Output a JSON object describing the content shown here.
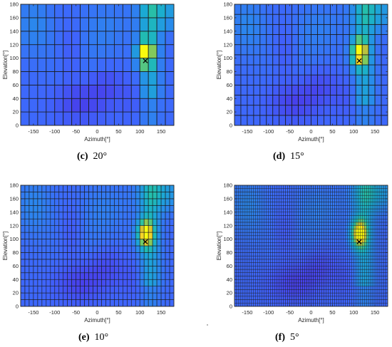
{
  "figure": {
    "panels": [
      {
        "id": "c",
        "label": "(c)",
        "resolution": "20°"
      },
      {
        "id": "d",
        "label": "(d)",
        "resolution": "15°"
      },
      {
        "id": "e",
        "label": "(e)",
        "resolution": "10°"
      },
      {
        "id": "f",
        "label": "(f)",
        "resolution": "5°"
      }
    ]
  },
  "chart_data": [
    {
      "type": "heatmap",
      "panel": "c",
      "title": "",
      "xlabel": "Azimuth[°]",
      "ylabel": "Elevation[°]",
      "xlim": [
        -180,
        180
      ],
      "ylim": [
        0,
        180
      ],
      "xticks": [
        -150,
        -100,
        -50,
        0,
        50,
        100,
        150
      ],
      "yticks": [
        0,
        20,
        40,
        60,
        80,
        100,
        120,
        140,
        160,
        180
      ],
      "cell_size_deg": 20,
      "colormap": "parula",
      "peak": {
        "azimuth": 113,
        "elevation": 96
      },
      "marker": "×",
      "grid": true
    },
    {
      "type": "heatmap",
      "panel": "d",
      "title": "",
      "xlabel": "Azimuth[°]",
      "ylabel": "Elevation[°]",
      "xlim": [
        -180,
        180
      ],
      "ylim": [
        0,
        180
      ],
      "xticks": [
        -150,
        -100,
        -50,
        0,
        50,
        100,
        150
      ],
      "yticks": [
        0,
        20,
        40,
        60,
        80,
        100,
        120,
        140,
        160,
        180
      ],
      "cell_size_deg": 15,
      "colormap": "parula",
      "peak": {
        "azimuth": 113,
        "elevation": 96
      },
      "marker": "×",
      "grid": true
    },
    {
      "type": "heatmap",
      "panel": "e",
      "title": "",
      "xlabel": "Azimuth[°]",
      "ylabel": "Elevation[°]",
      "xlim": [
        -180,
        180
      ],
      "ylim": [
        0,
        180
      ],
      "xticks": [
        -150,
        -100,
        -50,
        0,
        50,
        100,
        150
      ],
      "yticks": [
        0,
        20,
        40,
        60,
        80,
        100,
        120,
        140,
        160,
        180
      ],
      "cell_size_deg": 10,
      "colormap": "parula",
      "peak": {
        "azimuth": 113,
        "elevation": 96
      },
      "marker": "×",
      "grid": true
    },
    {
      "type": "heatmap",
      "panel": "f",
      "title": "",
      "xlabel": "Azimuth[°]",
      "ylabel": "Elevation[°]",
      "xlim": [
        -180,
        180
      ],
      "ylim": [
        0,
        180
      ],
      "xticks": [
        -150,
        -100,
        -50,
        0,
        50,
        100,
        150
      ],
      "yticks": [
        0,
        20,
        40,
        60,
        80,
        100,
        120,
        140,
        160,
        180
      ],
      "cell_size_deg": 5,
      "colormap": "parula",
      "peak": {
        "azimuth": 113,
        "elevation": 96
      },
      "marker": "×",
      "grid": true
    }
  ]
}
